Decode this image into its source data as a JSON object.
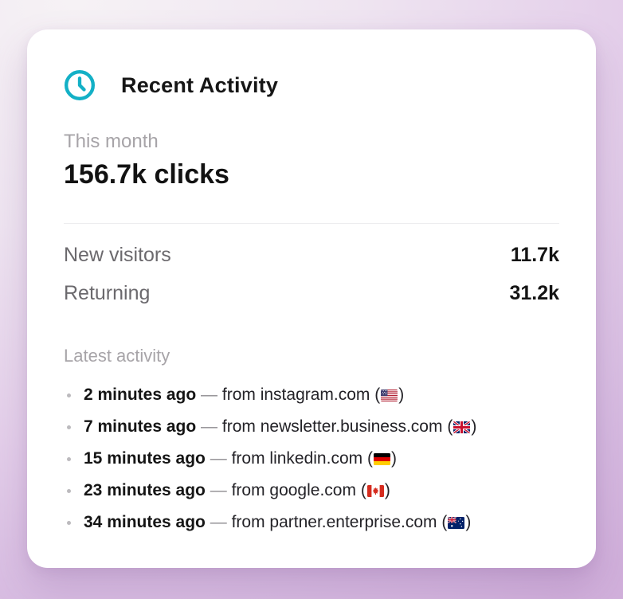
{
  "card": {
    "title": "Recent Activity",
    "colors": {
      "accent_teal": "#13b0c6",
      "card_background": "#ffffff",
      "page_background_light": "#f6f2f5",
      "page_background_purple": "#d1b0db"
    },
    "summary": {
      "period_label": "This month",
      "clicks_total": "156.7k clicks"
    },
    "stats": [
      {
        "label": "New visitors",
        "value": "11.7k"
      },
      {
        "label": "Returning",
        "value": "31.2k"
      }
    ],
    "activity": {
      "section_label": "Latest activity",
      "separator": "—",
      "flag_paren_open": "(",
      "flag_paren_close": ")",
      "items": [
        {
          "time": "2 minutes ago",
          "prefix": "from",
          "domain": "instagram.com",
          "country": "US",
          "flag_emoji": "🇺🇸"
        },
        {
          "time": "7 minutes ago",
          "prefix": "from",
          "domain": "newsletter.business.com",
          "country": "GB",
          "flag_emoji": "🇬🇧"
        },
        {
          "time": "15 minutes ago",
          "prefix": "from",
          "domain": "linkedin.com",
          "country": "DE",
          "flag_emoji": "🇩🇪"
        },
        {
          "time": "23 minutes ago",
          "prefix": "from",
          "domain": "google.com",
          "country": "CA",
          "flag_emoji": "🇨🇦"
        },
        {
          "time": "34 minutes ago",
          "prefix": "from",
          "domain": "partner.enterprise.com",
          "country": "AU",
          "flag_emoji": "🇦🇺"
        }
      ]
    }
  }
}
